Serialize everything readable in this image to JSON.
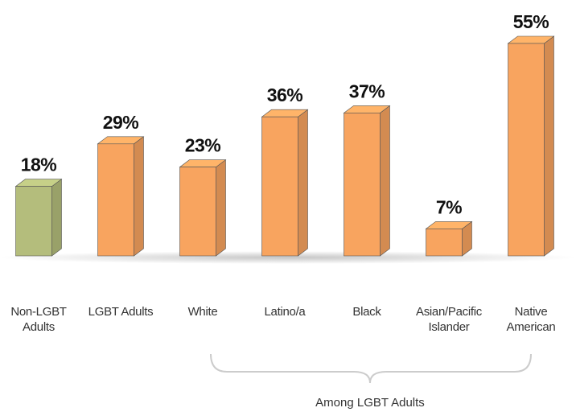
{
  "chart_data": {
    "type": "bar",
    "categories": [
      "Non-LGBT Adults",
      "LGBT Adults",
      "White",
      "Latino/a",
      "Black",
      "Asian/Pacific Islander",
      "Native American"
    ],
    "values": [
      18,
      29,
      23,
      36,
      37,
      7,
      55
    ],
    "value_labels": [
      "18%",
      "29%",
      "23%",
      "36%",
      "37%",
      "7%",
      "55%"
    ],
    "colors": [
      "#b4bd7c",
      "#f8a45f",
      "#f8a45f",
      "#f8a45f",
      "#f8a45f",
      "#f8a45f",
      "#f8a45f"
    ],
    "annotation": "Among LGBT Adults"
  }
}
